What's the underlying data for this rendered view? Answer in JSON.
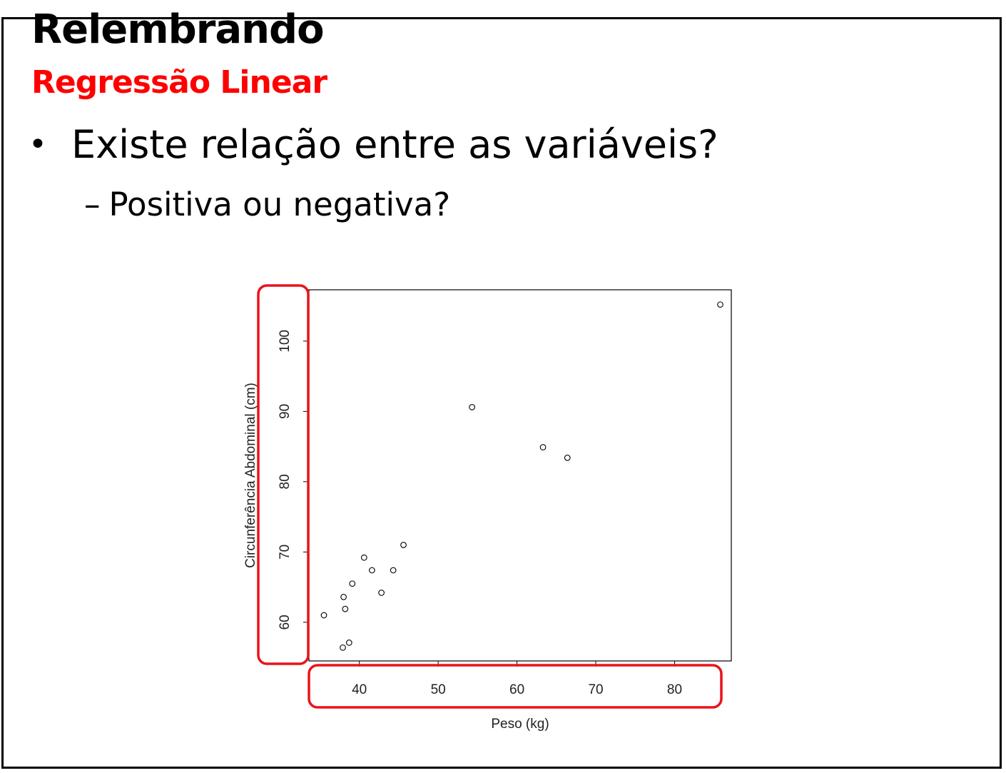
{
  "slide": {
    "title": "Relembrando",
    "subtitle": "Regressão Linear",
    "bullet": "•",
    "bullet_text": "Existe relação entre as variáveis?",
    "sub_dash": "–",
    "sub_text": "Positiva ou negativa?"
  },
  "colors": {
    "subtitle": "#ff0000",
    "highlight": "#e8141b",
    "text": "#000000"
  },
  "chart_data": {
    "type": "scatter",
    "title": "",
    "xlabel": "Peso (kg)",
    "ylabel": "Circunferência Abdominal (cm)",
    "xlim": [
      33.6,
      87.2
    ],
    "ylim": [
      54.5,
      107.3
    ],
    "xticks": [
      40,
      50,
      60,
      70,
      80
    ],
    "yticks": [
      60,
      70,
      80,
      90,
      100
    ],
    "marker": "open-circle",
    "grid": false,
    "x": [
      35.5,
      38.0,
      38.2,
      37.9,
      38.7,
      39.1,
      40.6,
      41.6,
      42.8,
      44.3,
      45.6,
      54.3,
      63.3,
      66.4,
      85.8
    ],
    "y": [
      61.0,
      63.6,
      61.9,
      56.4,
      57.1,
      65.5,
      69.2,
      67.4,
      64.2,
      67.4,
      71.0,
      90.6,
      84.9,
      83.4,
      105.2
    ],
    "highlights": [
      "y-axis",
      "x-axis"
    ]
  }
}
